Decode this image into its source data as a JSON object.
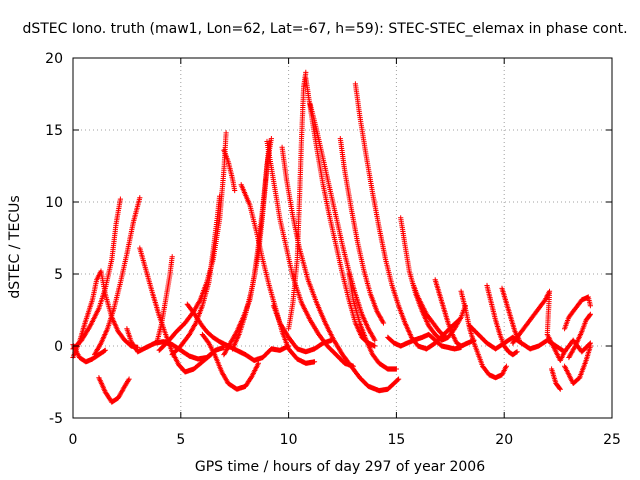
{
  "chart_data": {
    "type": "scatter",
    "title": "dSTEC Iono. truth (maw1, Lon=62, Lat=-67, h=59): STEC-STEC_elemax in phase cont.",
    "xlabel": "GPS time / hours of day 297 of year 2006",
    "ylabel": "dSTEC  / TECUs",
    "xlim": [
      0,
      25
    ],
    "ylim": [
      -5,
      20
    ],
    "xticks": [
      0,
      5,
      10,
      15,
      20,
      25
    ],
    "yticks": [
      -5,
      0,
      5,
      10,
      15,
      20
    ],
    "grid": true,
    "marker": "+",
    "color": "#ff0000",
    "arcs": [
      [
        [
          0.0,
          -0.8
        ],
        [
          0.3,
          0.3
        ],
        [
          0.6,
          1.8
        ],
        [
          0.9,
          3.2
        ],
        [
          1.1,
          4.6
        ],
        [
          1.3,
          5.2
        ],
        [
          1.5,
          3.6
        ],
        [
          1.8,
          2.0
        ],
        [
          2.1,
          1.0
        ],
        [
          2.4,
          0.4
        ],
        [
          2.7,
          0.0
        ],
        [
          3.0,
          -0.1
        ]
      ],
      [
        [
          0.0,
          -0.2
        ],
        [
          0.4,
          0.4
        ],
        [
          0.8,
          1.4
        ],
        [
          1.2,
          2.6
        ],
        [
          1.5,
          4.0
        ],
        [
          1.8,
          6.0
        ],
        [
          2.0,
          8.5
        ],
        [
          2.2,
          10.2
        ]
      ],
      [
        [
          0.0,
          0.1
        ],
        [
          0.3,
          -0.8
        ],
        [
          0.6,
          -1.1
        ],
        [
          0.9,
          -0.9
        ],
        [
          1.2,
          -0.6
        ],
        [
          1.5,
          -0.3
        ]
      ],
      [
        [
          1.2,
          -2.2
        ],
        [
          1.5,
          -3.2
        ],
        [
          1.8,
          -3.9
        ],
        [
          2.1,
          -3.6
        ],
        [
          2.4,
          -2.8
        ],
        [
          2.6,
          -2.3
        ]
      ],
      [
        [
          1.0,
          -0.6
        ],
        [
          1.3,
          0.2
        ],
        [
          1.6,
          1.2
        ],
        [
          1.9,
          2.6
        ],
        [
          2.2,
          4.4
        ],
        [
          2.5,
          6.4
        ],
        [
          2.8,
          8.6
        ],
        [
          3.1,
          10.3
        ]
      ],
      [
        [
          2.5,
          1.2
        ],
        [
          2.7,
          0.3
        ],
        [
          3.0,
          -0.4
        ],
        [
          3.4,
          -0.1
        ],
        [
          3.8,
          0.2
        ],
        [
          4.2,
          0.3
        ],
        [
          4.6,
          0.1
        ],
        [
          5.0,
          -0.3
        ],
        [
          5.4,
          -0.7
        ],
        [
          5.8,
          -0.9
        ],
        [
          6.2,
          -0.8
        ],
        [
          6.6,
          -0.3
        ],
        [
          7.0,
          -0.1
        ]
      ],
      [
        [
          3.1,
          6.8
        ],
        [
          3.4,
          5.2
        ],
        [
          3.7,
          3.6
        ],
        [
          4.0,
          2.1
        ],
        [
          4.3,
          0.8
        ],
        [
          4.6,
          -0.4
        ],
        [
          4.9,
          -1.3
        ],
        [
          5.2,
          -1.8
        ],
        [
          5.6,
          -1.6
        ],
        [
          6.0,
          -1.1
        ],
        [
          6.4,
          -0.6
        ]
      ],
      [
        [
          3.9,
          0.3
        ],
        [
          4.1,
          1.5
        ],
        [
          4.3,
          3.2
        ],
        [
          4.5,
          5.0
        ],
        [
          4.6,
          6.2
        ]
      ],
      [
        [
          4.0,
          -0.3
        ],
        [
          4.4,
          0.3
        ],
        [
          4.8,
          1.0
        ],
        [
          5.2,
          1.6
        ],
        [
          5.6,
          2.4
        ],
        [
          5.9,
          3.2
        ],
        [
          6.2,
          4.4
        ],
        [
          6.5,
          6.0
        ],
        [
          6.8,
          8.8
        ],
        [
          7.0,
          12.2
        ],
        [
          7.1,
          14.8
        ]
      ],
      [
        [
          4.6,
          -0.6
        ],
        [
          5.0,
          0.0
        ],
        [
          5.4,
          0.8
        ],
        [
          5.7,
          1.6
        ],
        [
          6.0,
          2.8
        ],
        [
          6.3,
          4.4
        ],
        [
          6.5,
          6.6
        ],
        [
          6.7,
          9.0
        ],
        [
          6.8,
          10.4
        ]
      ],
      [
        [
          7.0,
          13.6
        ],
        [
          7.2,
          12.8
        ],
        [
          7.4,
          11.6
        ],
        [
          7.5,
          10.8
        ]
      ],
      [
        [
          5.3,
          2.9
        ],
        [
          5.6,
          2.3
        ],
        [
          5.9,
          1.6
        ],
        [
          6.2,
          1.0
        ],
        [
          6.5,
          0.6
        ],
        [
          6.8,
          0.3
        ],
        [
          7.2,
          0.0
        ],
        [
          7.6,
          -0.3
        ],
        [
          8.0,
          -0.6
        ],
        [
          8.4,
          -1.0
        ],
        [
          8.8,
          -0.8
        ],
        [
          9.2,
          -0.2
        ],
        [
          9.6,
          -0.3
        ],
        [
          10.0,
          0.0
        ]
      ],
      [
        [
          6.0,
          0.8
        ],
        [
          6.3,
          0.2
        ],
        [
          6.6,
          -0.7
        ],
        [
          6.9,
          -1.8
        ],
        [
          7.2,
          -2.6
        ],
        [
          7.6,
          -3.0
        ],
        [
          8.0,
          -2.8
        ],
        [
          8.3,
          -2.1
        ],
        [
          8.6,
          -1.2
        ]
      ],
      [
        [
          7.0,
          -0.6
        ],
        [
          7.3,
          0.2
        ],
        [
          7.6,
          1.0
        ],
        [
          7.9,
          2.0
        ],
        [
          8.2,
          3.2
        ],
        [
          8.4,
          4.8
        ],
        [
          8.6,
          7.0
        ],
        [
          8.8,
          9.6
        ],
        [
          9.0,
          12.6
        ],
        [
          9.2,
          14.4
        ]
      ],
      [
        [
          7.4,
          -0.2
        ],
        [
          7.7,
          0.8
        ],
        [
          8.0,
          2.2
        ],
        [
          8.3,
          4.0
        ],
        [
          8.6,
          6.4
        ],
        [
          8.8,
          9.2
        ],
        [
          9.0,
          12.4
        ],
        [
          9.1,
          14.2
        ]
      ],
      [
        [
          7.8,
          11.2
        ],
        [
          8.2,
          9.8
        ],
        [
          8.5,
          8.0
        ],
        [
          8.8,
          6.0
        ],
        [
          9.1,
          4.2
        ],
        [
          9.4,
          2.6
        ],
        [
          9.7,
          1.0
        ],
        [
          10.0,
          -0.2
        ],
        [
          10.4,
          -0.9
        ],
        [
          10.8,
          -1.2
        ],
        [
          11.2,
          -1.1
        ]
      ],
      [
        [
          9.0,
          14.2
        ],
        [
          9.2,
          12.4
        ],
        [
          9.4,
          10.6
        ],
        [
          9.6,
          8.8
        ],
        [
          9.9,
          6.8
        ],
        [
          10.2,
          4.8
        ],
        [
          10.6,
          3.0
        ],
        [
          11.0,
          1.8
        ],
        [
          11.4,
          0.8
        ],
        [
          11.8,
          0.0
        ],
        [
          12.2,
          -0.6
        ],
        [
          12.6,
          -1.2
        ],
        [
          13.0,
          -1.4
        ]
      ],
      [
        [
          9.7,
          13.8
        ],
        [
          9.9,
          11.6
        ],
        [
          10.2,
          9.0
        ],
        [
          10.5,
          6.8
        ],
        [
          10.9,
          4.6
        ],
        [
          11.3,
          3.0
        ],
        [
          11.7,
          1.6
        ],
        [
          12.1,
          0.4
        ],
        [
          12.5,
          -0.6
        ],
        [
          12.9,
          -1.4
        ],
        [
          13.3,
          -2.2
        ],
        [
          13.7,
          -2.8
        ],
        [
          14.2,
          -3.1
        ],
        [
          14.6,
          -3.0
        ],
        [
          15.1,
          -2.3
        ]
      ],
      [
        [
          9.3,
          2.8
        ],
        [
          9.6,
          1.6
        ],
        [
          10.0,
          0.6
        ],
        [
          10.4,
          -0.2
        ],
        [
          10.8,
          -0.4
        ],
        [
          11.2,
          -0.2
        ],
        [
          11.6,
          0.2
        ],
        [
          12.0,
          0.4
        ]
      ],
      [
        [
          10.0,
          1.2
        ],
        [
          10.2,
          3.0
        ],
        [
          10.4,
          6.0
        ],
        [
          10.5,
          10.0
        ],
        [
          10.6,
          14.4
        ],
        [
          10.7,
          18.0
        ],
        [
          10.8,
          19.0
        ]
      ],
      [
        [
          10.8,
          18.6
        ],
        [
          11.0,
          16.6
        ],
        [
          11.3,
          13.8
        ],
        [
          11.6,
          11.2
        ],
        [
          11.9,
          9.0
        ],
        [
          12.2,
          7.0
        ],
        [
          12.5,
          5.0
        ],
        [
          12.8,
          3.2
        ],
        [
          13.1,
          1.6
        ],
        [
          13.4,
          0.6
        ],
        [
          13.7,
          0.2
        ],
        [
          14.0,
          0.0
        ]
      ],
      [
        [
          11.0,
          16.8
        ],
        [
          11.3,
          15.0
        ],
        [
          11.6,
          13.0
        ],
        [
          11.9,
          11.0
        ],
        [
          12.2,
          9.0
        ],
        [
          12.5,
          7.0
        ],
        [
          12.8,
          5.2
        ],
        [
          13.1,
          3.6
        ],
        [
          13.4,
          2.2
        ],
        [
          13.7,
          1.2
        ],
        [
          14.0,
          0.4
        ]
      ],
      [
        [
          12.4,
          14.4
        ],
        [
          12.6,
          12.2
        ],
        [
          12.9,
          9.6
        ],
        [
          13.2,
          7.2
        ],
        [
          13.5,
          5.2
        ],
        [
          13.8,
          3.6
        ],
        [
          14.1,
          2.4
        ],
        [
          14.4,
          1.6
        ]
      ],
      [
        [
          13.1,
          18.2
        ],
        [
          13.3,
          16.0
        ],
        [
          13.6,
          13.2
        ],
        [
          13.9,
          10.6
        ],
        [
          14.2,
          8.2
        ],
        [
          14.5,
          6.0
        ],
        [
          14.8,
          4.2
        ],
        [
          15.1,
          2.8
        ],
        [
          15.4,
          1.6
        ],
        [
          15.7,
          0.6
        ],
        [
          16.0,
          0.0
        ],
        [
          16.4,
          -0.2
        ],
        [
          16.8,
          0.2
        ],
        [
          17.2,
          0.8
        ],
        [
          17.6,
          1.4
        ],
        [
          17.9,
          1.8
        ]
      ],
      [
        [
          12.8,
          5.0
        ],
        [
          13.0,
          3.2
        ],
        [
          13.3,
          1.6
        ],
        [
          13.6,
          0.4
        ],
        [
          13.9,
          -0.6
        ],
        [
          14.2,
          -1.2
        ],
        [
          14.6,
          -1.6
        ],
        [
          15.0,
          -1.6
        ]
      ],
      [
        [
          14.6,
          0.6
        ],
        [
          14.9,
          0.2
        ],
        [
          15.2,
          0.0
        ],
        [
          15.5,
          0.2
        ],
        [
          15.8,
          0.4
        ],
        [
          16.2,
          0.6
        ],
        [
          16.5,
          0.8
        ],
        [
          16.8,
          0.4
        ],
        [
          17.1,
          0.0
        ],
        [
          17.4,
          -0.1
        ],
        [
          17.7,
          -0.2
        ],
        [
          18.0,
          -0.1
        ]
      ],
      [
        [
          15.2,
          8.9
        ],
        [
          15.4,
          7.0
        ],
        [
          15.6,
          5.2
        ],
        [
          15.9,
          3.6
        ],
        [
          16.2,
          2.4
        ],
        [
          16.5,
          1.4
        ],
        [
          16.8,
          0.8
        ],
        [
          17.1,
          0.4
        ],
        [
          17.4,
          0.6
        ],
        [
          17.7,
          1.2
        ],
        [
          18.0,
          2.0
        ],
        [
          18.2,
          2.8
        ]
      ],
      [
        [
          15.8,
          4.2
        ],
        [
          16.0,
          3.4
        ],
        [
          16.2,
          2.8
        ],
        [
          16.4,
          2.2
        ],
        [
          16.7,
          1.6
        ],
        [
          17.0,
          1.0
        ],
        [
          17.3,
          0.6
        ]
      ],
      [
        [
          16.8,
          4.6
        ],
        [
          17.0,
          3.6
        ],
        [
          17.2,
          2.6
        ],
        [
          17.4,
          1.6
        ],
        [
          17.6,
          0.8
        ],
        [
          17.8,
          0.2
        ],
        [
          18.0,
          0.0
        ],
        [
          18.3,
          0.2
        ],
        [
          18.6,
          0.4
        ]
      ],
      [
        [
          18.0,
          3.8
        ],
        [
          18.2,
          2.6
        ],
        [
          18.4,
          1.2
        ],
        [
          18.6,
          0.2
        ],
        [
          18.8,
          -0.6
        ],
        [
          19.0,
          -1.4
        ],
        [
          19.3,
          -2.0
        ],
        [
          19.6,
          -2.2
        ],
        [
          19.9,
          -2.0
        ],
        [
          20.1,
          -1.4
        ]
      ],
      [
        [
          18.4,
          1.4
        ],
        [
          18.8,
          0.8
        ],
        [
          19.2,
          0.2
        ],
        [
          19.6,
          -0.2
        ],
        [
          20.0,
          0.2
        ],
        [
          20.4,
          0.6
        ],
        [
          20.8,
          0.2
        ],
        [
          21.2,
          -0.2
        ],
        [
          21.6,
          0.0
        ],
        [
          22.0,
          0.4
        ],
        [
          22.4,
          0.0
        ],
        [
          22.8,
          -0.4
        ],
        [
          23.2,
          0.4
        ],
        [
          23.6,
          -0.4
        ],
        [
          24.0,
          0.2
        ]
      ],
      [
        [
          19.2,
          4.2
        ],
        [
          19.4,
          3.0
        ],
        [
          19.6,
          1.8
        ],
        [
          19.8,
          0.8
        ],
        [
          20.0,
          0.0
        ],
        [
          20.2,
          -0.4
        ],
        [
          20.4,
          -0.6
        ],
        [
          20.6,
          -0.4
        ]
      ],
      [
        [
          19.9,
          4.0
        ],
        [
          20.1,
          3.0
        ],
        [
          20.3,
          2.0
        ],
        [
          20.5,
          1.0
        ],
        [
          20.7,
          0.4
        ]
      ],
      [
        [
          20.4,
          0.2
        ],
        [
          20.7,
          0.8
        ],
        [
          21.0,
          1.4
        ],
        [
          21.3,
          2.0
        ],
        [
          21.6,
          2.6
        ],
        [
          21.9,
          3.2
        ],
        [
          22.1,
          3.8
        ],
        [
          22.0,
          0.8
        ],
        [
          22.2,
          0.2
        ],
        [
          22.4,
          -0.4
        ],
        [
          22.6,
          -1.0
        ],
        [
          22.8,
          -0.4
        ]
      ],
      [
        [
          22.2,
          -1.6
        ],
        [
          22.4,
          -2.6
        ],
        [
          22.6,
          -3.0
        ]
      ],
      [
        [
          22.8,
          -1.4
        ],
        [
          23.0,
          -2.0
        ],
        [
          23.2,
          -2.6
        ],
        [
          23.5,
          -2.2
        ],
        [
          23.8,
          -1.0
        ],
        [
          24.0,
          0.0
        ]
      ],
      [
        [
          22.8,
          1.2
        ],
        [
          23.0,
          2.0
        ],
        [
          23.3,
          2.6
        ],
        [
          23.6,
          3.2
        ],
        [
          23.9,
          3.4
        ],
        [
          24.0,
          2.8
        ]
      ],
      [
        [
          23.0,
          -0.8
        ],
        [
          23.3,
          0.0
        ],
        [
          23.6,
          1.0
        ],
        [
          23.8,
          1.8
        ],
        [
          24.0,
          2.2
        ]
      ]
    ]
  }
}
